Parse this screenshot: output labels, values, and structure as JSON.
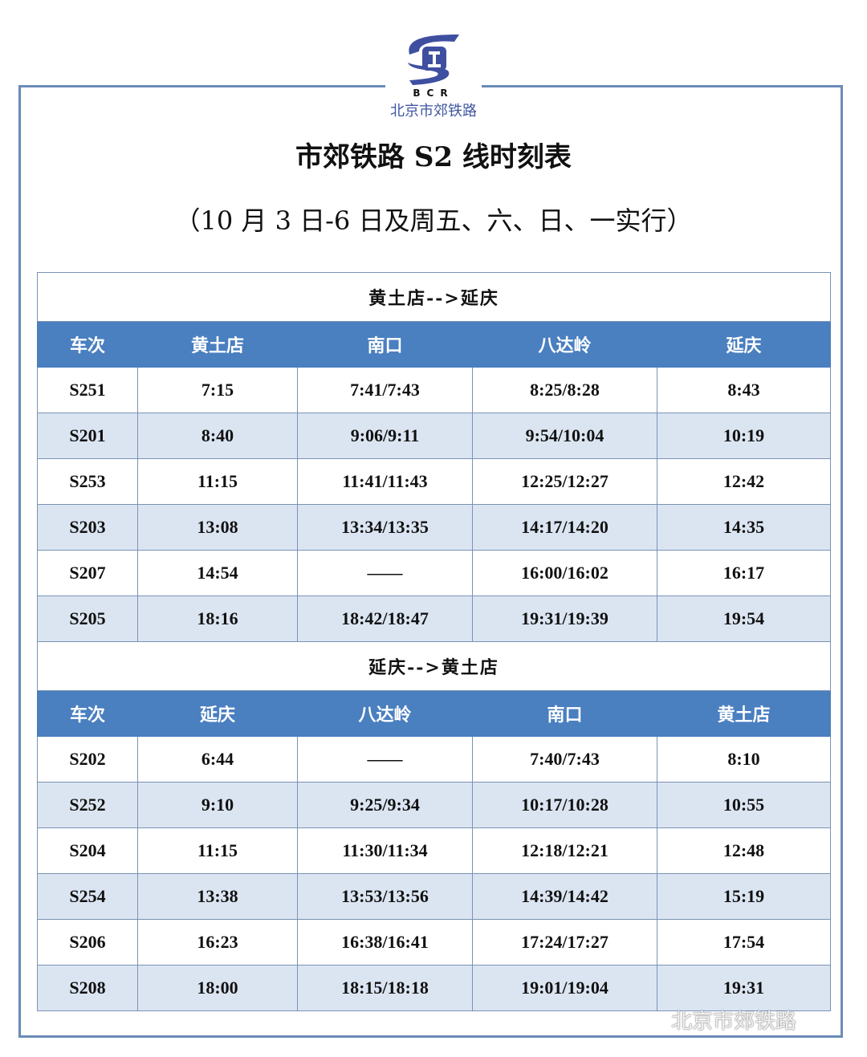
{
  "logo": {
    "letters": "BCR",
    "org": "北京市郊铁路"
  },
  "title": "市郊铁路 S2 线时刻表",
  "subtitle": "（10 月 3 日-6 日及周五、六、日、一实行）",
  "colors": {
    "header": "#4a7fc0",
    "alt_row": "#dbe5f2",
    "frame": "#6a8bb7"
  },
  "sections": [
    {
      "direction": "黄土店-->延庆",
      "headers": [
        "车次",
        "黄土店",
        "南口",
        "八达岭",
        "延庆"
      ],
      "rows": [
        [
          "S251",
          "7:15",
          "7:41/7:43",
          "8:25/8:28",
          "8:43"
        ],
        [
          "S201",
          "8:40",
          "9:06/9:11",
          "9:54/10:04",
          "10:19"
        ],
        [
          "S253",
          "11:15",
          "11:41/11:43",
          "12:25/12:27",
          "12:42"
        ],
        [
          "S203",
          "13:08",
          "13:34/13:35",
          "14:17/14:20",
          "14:35"
        ],
        [
          "S207",
          "14:54",
          "——",
          "16:00/16:02",
          "16:17"
        ],
        [
          "S205",
          "18:16",
          "18:42/18:47",
          "19:31/19:39",
          "19:54"
        ]
      ]
    },
    {
      "direction": "延庆-->黄土店",
      "headers": [
        "车次",
        "延庆",
        "八达岭",
        "南口",
        "黄土店"
      ],
      "rows": [
        [
          "S202",
          "6:44",
          "——",
          "7:40/7:43",
          "8:10"
        ],
        [
          "S252",
          "9:10",
          "9:25/9:34",
          "10:17/10:28",
          "10:55"
        ],
        [
          "S204",
          "11:15",
          "11:30/11:34",
          "12:18/12:21",
          "12:48"
        ],
        [
          "S254",
          "13:38",
          "13:53/13:56",
          "14:39/14:42",
          "15:19"
        ],
        [
          "S206",
          "16:23",
          "16:38/16:41",
          "17:24/17:27",
          "17:54"
        ],
        [
          "S208",
          "18:00",
          "18:15/18:18",
          "19:01/19:04",
          "19:31"
        ]
      ]
    }
  ],
  "watermark": "北京市郊铁路"
}
